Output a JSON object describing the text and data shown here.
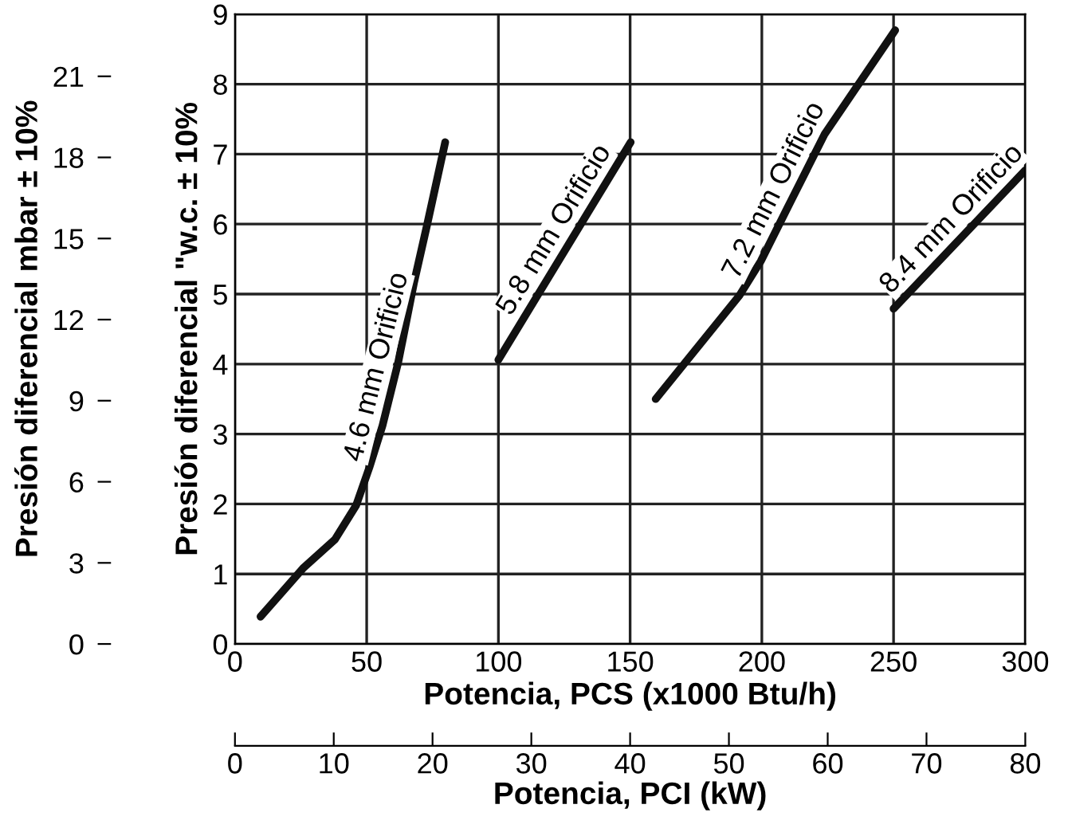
{
  "chart_data": {
    "type": "line",
    "xlabel": "Potencia, PCS (x1000 Btu/h)",
    "ylabel": "Presión diferencial \"w.c. ± 10%",
    "y2label": "Presión diferencial mbar ± 10%",
    "x2label": "Potencia, PCI (kW)",
    "xlim": [
      0,
      300
    ],
    "xticks": [
      0,
      50,
      100,
      150,
      200,
      250,
      300
    ],
    "ylim": [
      0,
      9
    ],
    "yticks": [
      0,
      1,
      2,
      3,
      4,
      5,
      6,
      7,
      8,
      9
    ],
    "y2lim": [
      0,
      23.3
    ],
    "y2ticks": [
      0,
      3,
      6,
      9,
      12,
      15,
      18,
      21
    ],
    "x2lim": [
      0,
      80
    ],
    "x2ticks": [
      0,
      10,
      20,
      30,
      40,
      50,
      60,
      70,
      80
    ],
    "grid": true,
    "marker": "none",
    "line_style": "solid",
    "series": [
      {
        "name": "4.6 mm Orificio",
        "color": "#111111",
        "x": [
          9.7,
          25.8,
          37.9,
          46,
          51,
          56,
          62,
          68,
          73,
          79.8
        ],
        "values": [
          0.39,
          1.08,
          1.49,
          1.98,
          2.52,
          3.12,
          4.03,
          5.17,
          6.0,
          7.17
        ]
      },
      {
        "name": "5.8 mm Orificio",
        "color": "#111111",
        "x": [
          100,
          150.2
        ],
        "values": [
          4.06,
          7.17
        ]
      },
      {
        "name": "7.2 mm Orificio",
        "color": "#111111",
        "x": [
          159.7,
          191.5,
          199.6,
          209.7,
          223.9,
          250.6
        ],
        "values": [
          3.5,
          4.98,
          5.47,
          6.23,
          7.29,
          8.77
        ]
      },
      {
        "name": "8.4 mm Orificio",
        "color": "#111111",
        "x": [
          250,
          300
        ],
        "values": [
          4.79,
          6.77
        ]
      }
    ]
  }
}
